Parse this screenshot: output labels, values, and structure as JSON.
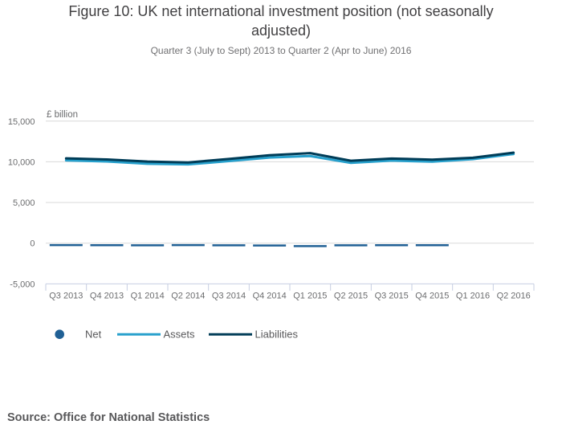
{
  "title": "Figure 10: UK net international investment position (not seasonally adjusted)",
  "subtitle": "Quarter 3 (July to Sept) 2013 to Quarter 2 (Apr to June) 2016",
  "y_axis_unit_label": "£ billion",
  "source_note": "Source: Office for National Statistics",
  "colors": {
    "net": "#206095",
    "assets": "#27a0cc",
    "liabilities": "#003c57",
    "gridline": "#d9d9d9",
    "axis_line": "#c6cee2",
    "title_text": "#414042",
    "subtitle_text": "#707072",
    "axis_label_text": "#6b6c6e",
    "legend_text": "#58585a",
    "source_text": "#58585a",
    "background": "#ffffff"
  },
  "legend": {
    "items": [
      {
        "label": "Net",
        "marker": "dot",
        "color": "#206095"
      },
      {
        "label": "Assets",
        "marker": "line",
        "color": "#27a0cc"
      },
      {
        "label": "Liabilities",
        "marker": "line",
        "color": "#003c57"
      }
    ]
  },
  "chart_data": {
    "type": "line",
    "title": "Figure 10: UK net international investment position (not seasonally adjusted)",
    "subtitle": "Quarter 3 (July to Sept) 2013 to Quarter 2 (Apr to June) 2016",
    "ylabel": "£ billion",
    "categories": [
      "Q3 2013",
      "Q4 2013",
      "Q1 2014",
      "Q2 2014",
      "Q3 2014",
      "Q4 2014",
      "Q1 2015",
      "Q2 2015",
      "Q3 2015",
      "Q4 2015",
      "Q1 2016",
      "Q2 2016"
    ],
    "series": [
      {
        "name": "Net",
        "style": "dash",
        "color": "#206095",
        "values": [
          -240,
          -250,
          -270,
          -240,
          -260,
          -290,
          -360,
          -260,
          -250,
          -250,
          null,
          null
        ]
      },
      {
        "name": "Assets",
        "style": "line",
        "color": "#27a0cc",
        "values": [
          10180,
          10040,
          9760,
          9680,
          10090,
          10520,
          10710,
          9870,
          10150,
          10020,
          10330,
          10960
        ]
      },
      {
        "name": "Liabilities",
        "style": "line",
        "color": "#003c57",
        "values": [
          10420,
          10290,
          10030,
          9920,
          10350,
          10810,
          11070,
          10130,
          10400,
          10270,
          10500,
          11130
        ]
      }
    ],
    "ylim": [
      -5000,
      15000
    ],
    "yticks": [
      -5000,
      0,
      5000,
      10000,
      15000
    ],
    "grid": true,
    "legend_position": "bottom"
  }
}
